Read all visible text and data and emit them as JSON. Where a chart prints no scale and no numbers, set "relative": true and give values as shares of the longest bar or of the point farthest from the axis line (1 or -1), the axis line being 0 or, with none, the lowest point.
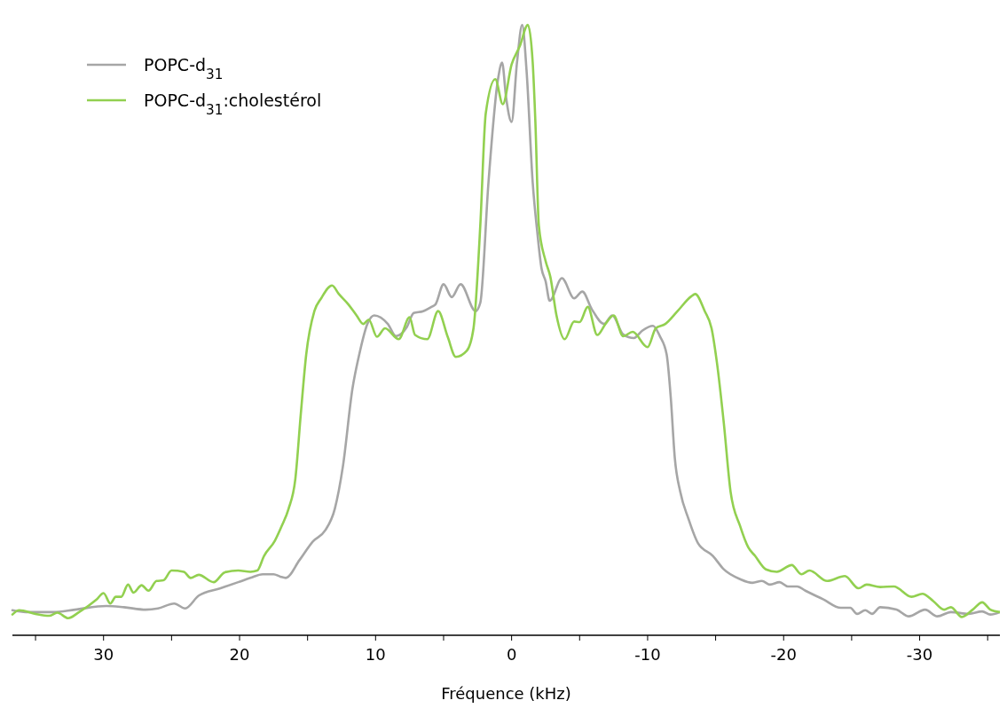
{
  "chart_data": {
    "type": "line",
    "relative": true,
    "xlabel": "Fréquence (kHz)",
    "xlim": [
      36.7,
      -35.9
    ],
    "xticks": [
      {
        "value": 35,
        "label": null
      },
      30,
      {
        "value": 25,
        "label": null
      },
      20,
      {
        "value": 15,
        "label": null
      },
      10,
      {
        "value": 5,
        "label": null
      },
      0,
      {
        "value": -5,
        "label": null
      },
      -10,
      {
        "value": -15,
        "label": null
      },
      -20,
      {
        "value": -25,
        "label": null
      },
      -30,
      {
        "value": -35,
        "label": null
      }
    ],
    "legend": "top left",
    "grid": false,
    "line_style": "solid",
    "series": [
      {
        "name": "POPC-d$_{31}$",
        "color": "#a6a6a6",
        "x": [
          36.7,
          35.7,
          33.7,
          32.1,
          29.8,
          28.5,
          26.9,
          26.0,
          24.8,
          24.0,
          23.0,
          21.4,
          20.1,
          19.2,
          18.3,
          17.5,
          17.0,
          16.6,
          15.6,
          14.6,
          13.7,
          13.0,
          12.4,
          11.7,
          11.2,
          10.6,
          10.1,
          9.1,
          8.5,
          7.7,
          7.2,
          6.5,
          5.9,
          5.6,
          5.0,
          4.4,
          3.75,
          2.65,
          2.3,
          1.7,
          1.0,
          0.7,
          0.4,
          0,
          -0.4,
          -0.78,
          -1.1,
          -1.55,
          -1.9,
          -2.2,
          -2.5,
          -2.8,
          -3.7,
          -4.6,
          -5.2,
          -5.9,
          -6.8,
          -7.4,
          -8.2,
          -9.0,
          -9.6,
          -10.4,
          -10.9,
          -11.4,
          -11.7,
          -12.0,
          -12.4,
          -13.0,
          -13.7,
          -14.8,
          -15.6,
          -16.8,
          -17.7,
          -18.4,
          -19.0,
          -19.7,
          -20.3,
          -21.0,
          -21.6,
          -22.9,
          -24.2,
          -24.9,
          -25.4,
          -26.0,
          -26.5,
          -27.1,
          -28.3,
          -29.2,
          -30.4,
          -31.3,
          -32.3,
          -33.6,
          -34.6,
          -35.2,
          -35.9
        ],
        "values": [
          0.041,
          0.038,
          0.038,
          0.042,
          0.048,
          0.046,
          0.042,
          0.044,
          0.052,
          0.044,
          0.065,
          0.077,
          0.087,
          0.094,
          0.1,
          0.1,
          0.096,
          0.094,
          0.123,
          0.154,
          0.172,
          0.207,
          0.277,
          0.404,
          0.46,
          0.51,
          0.524,
          0.51,
          0.49,
          0.505,
          0.528,
          0.531,
          0.538,
          0.542,
          0.575,
          0.554,
          0.575,
          0.531,
          0.545,
          0.742,
          0.911,
          0.938,
          0.88,
          0.841,
          0.939,
          1.0,
          0.925,
          0.742,
          0.658,
          0.601,
          0.58,
          0.548,
          0.585,
          0.552,
          0.563,
          0.534,
          0.51,
          0.524,
          0.493,
          0.487,
          0.499,
          0.507,
          0.49,
          0.46,
          0.39,
          0.29,
          0.235,
          0.191,
          0.151,
          0.13,
          0.108,
          0.092,
          0.086,
          0.089,
          0.083,
          0.087,
          0.08,
          0.08,
          0.073,
          0.059,
          0.045,
          0.045,
          0.035,
          0.041,
          0.035,
          0.046,
          0.042,
          0.031,
          0.042,
          0.031,
          0.038,
          0.035,
          0.039,
          0.034,
          0.038
        ]
      },
      {
        "name": "POPC-d$_{31}$:cholestérol",
        "color": "#92d050",
        "x": [
          36.7,
          36.2,
          35.0,
          34.0,
          33.4,
          32.6,
          31.8,
          30.5,
          30.0,
          29.5,
          29.1,
          28.7,
          28.2,
          27.8,
          27.2,
          26.7,
          26.1,
          25.6,
          25.0,
          24.1,
          23.6,
          23.0,
          21.9,
          21.1,
          20.1,
          19.2,
          18.7,
          18.2,
          17.4,
          16.9,
          16.4,
          15.9,
          15.5,
          15.1,
          14.5,
          14.0,
          13.2,
          12.7,
          12.0,
          11.4,
          10.9,
          10.5,
          9.9,
          9.3,
          8.3,
          7.5,
          7.1,
          6.2,
          5.4,
          4.7,
          4.1,
          3.3,
          2.8,
          2.3,
          1.9,
          1.2,
          0.65,
          0,
          -0.6,
          -1.2,
          -1.55,
          -1.75,
          -2.0,
          -2.5,
          -2.85,
          -3.3,
          -3.9,
          -4.6,
          -5.0,
          -5.6,
          -6.3,
          -6.9,
          -7.5,
          -8.2,
          -8.9,
          -10.0,
          -10.6,
          -11.3,
          -12.2,
          -13.2,
          -13.5,
          -14.2,
          -14.7,
          -15.1,
          -15.6,
          -16.1,
          -16.8,
          -17.4,
          -17.9,
          -18.7,
          -19.5,
          -20.6,
          -21.3,
          -21.9,
          -23.2,
          -24.5,
          -25.5,
          -26.1,
          -27.1,
          -28.1,
          -29.4,
          -30.2,
          -31.0,
          -31.8,
          -32.3,
          -33.1,
          -33.9,
          -34.6,
          -35.2,
          -35.9
        ],
        "values": [
          0.034,
          0.041,
          0.035,
          0.032,
          0.037,
          0.028,
          0.038,
          0.059,
          0.069,
          0.052,
          0.063,
          0.063,
          0.083,
          0.07,
          0.082,
          0.073,
          0.089,
          0.09,
          0.106,
          0.104,
          0.094,
          0.099,
          0.087,
          0.103,
          0.106,
          0.104,
          0.106,
          0.13,
          0.155,
          0.179,
          0.207,
          0.256,
          0.362,
          0.46,
          0.531,
          0.552,
          0.573,
          0.559,
          0.542,
          0.524,
          0.51,
          0.517,
          0.489,
          0.503,
          0.485,
          0.521,
          0.492,
          0.485,
          0.531,
          0.489,
          0.456,
          0.466,
          0.503,
          0.672,
          0.855,
          0.911,
          0.87,
          0.935,
          0.965,
          1.0,
          0.939,
          0.84,
          0.672,
          0.613,
          0.587,
          0.524,
          0.485,
          0.514,
          0.513,
          0.538,
          0.492,
          0.51,
          0.524,
          0.49,
          0.497,
          0.472,
          0.503,
          0.51,
          0.531,
          0.555,
          0.559,
          0.531,
          0.503,
          0.446,
          0.348,
          0.235,
          0.179,
          0.144,
          0.13,
          0.108,
          0.104,
          0.115,
          0.1,
          0.106,
          0.089,
          0.097,
          0.077,
          0.083,
          0.079,
          0.08,
          0.063,
          0.068,
          0.056,
          0.042,
          0.046,
          0.03,
          0.042,
          0.054,
          0.042,
          0.038
        ]
      }
    ]
  }
}
